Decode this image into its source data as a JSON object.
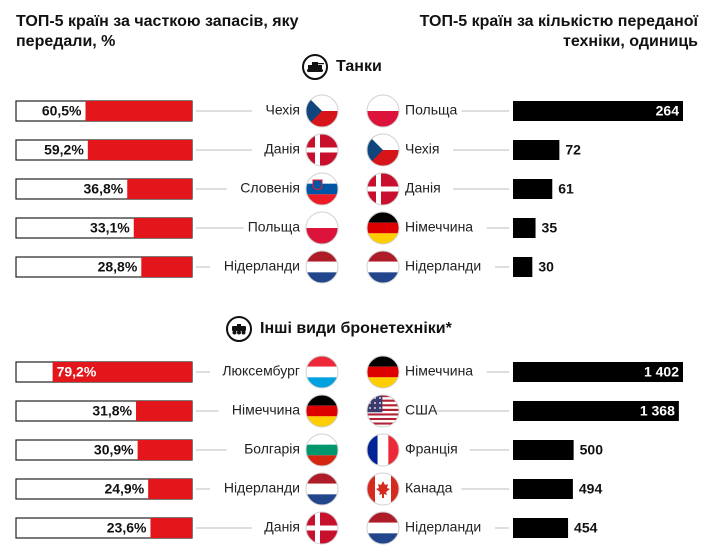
{
  "header": {
    "left_title": "ТОП-5 країн за часткою запасів, яку передали, %",
    "right_title": "ТОП-5 країн за кількістю переданої техніки, одиниць"
  },
  "colors": {
    "red": "#e3161b",
    "black": "#000000",
    "connector": "#bdbdbd"
  },
  "chart_data": [
    {
      "type": "bar",
      "section": "Танки",
      "section_icon": "tank-icon",
      "side": "left",
      "bar_color": "#e3161b",
      "categories": [
        "Чехія",
        "Данія",
        "Словенія",
        "Польща",
        "Нідерланди"
      ],
      "values": [
        60.5,
        59.2,
        36.8,
        33.1,
        28.8
      ],
      "labels": [
        "60,5%",
        "59,2%",
        "36,8%",
        "33,1%",
        "28,8%"
      ],
      "flags": [
        "cz",
        "dk",
        "si",
        "pl",
        "nl"
      ],
      "xlim": [
        0,
        100
      ]
    },
    {
      "type": "bar",
      "section": "Танки",
      "side": "right",
      "bar_color": "#000000",
      "categories": [
        "Польща",
        "Чехія",
        "Данія",
        "Німеччина",
        "Нідерланди"
      ],
      "values": [
        264,
        72,
        61,
        35,
        30
      ],
      "labels": [
        "264",
        "72",
        "61",
        "35",
        "30"
      ],
      "flags": [
        "pl",
        "cz",
        "dk",
        "de",
        "nl"
      ]
    },
    {
      "type": "bar",
      "section": "Інші види бронетехніки*",
      "section_icon": "armored-vehicle-icon",
      "side": "left",
      "bar_color": "#e3161b",
      "categories": [
        "Люксембург",
        "Німеччина",
        "Болгарія",
        "Нідерланди",
        "Данія"
      ],
      "values": [
        79.2,
        31.8,
        30.9,
        24.9,
        23.6
      ],
      "labels": [
        "79,2%",
        "31,8%",
        "30,9%",
        "24,9%",
        "23,6%"
      ],
      "flags": [
        "lu",
        "de",
        "bg",
        "nl",
        "dk"
      ],
      "xlim": [
        0,
        100
      ]
    },
    {
      "type": "bar",
      "section": "Інші види бронетехніки*",
      "side": "right",
      "bar_color": "#000000",
      "categories": [
        "Німеччина",
        "США",
        "Франція",
        "Канада",
        "Нідерланди"
      ],
      "values": [
        1402,
        1368,
        500,
        494,
        454
      ],
      "labels": [
        "1 402",
        "1 368",
        "500",
        "494",
        "454"
      ],
      "flags": [
        "de",
        "us",
        "fr",
        "ca",
        "nl"
      ]
    }
  ]
}
